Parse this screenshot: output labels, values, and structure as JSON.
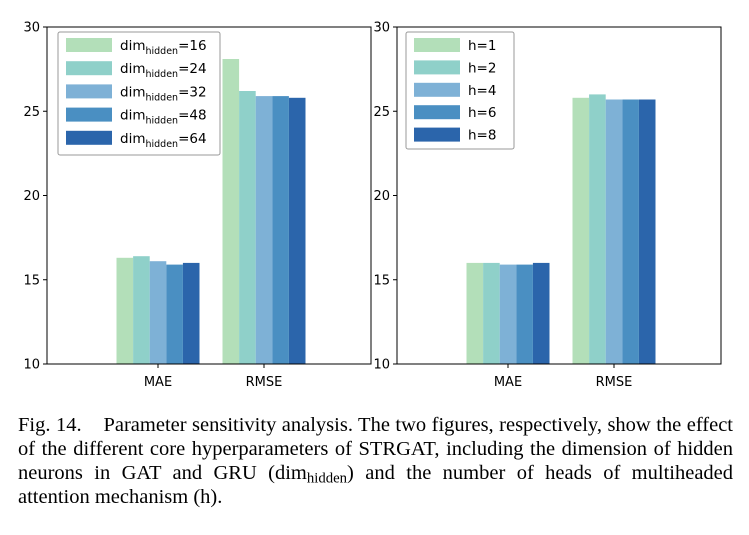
{
  "chart_data": [
    {
      "type": "bar",
      "categories": [
        "MAE",
        "RMSE"
      ],
      "ylim": [
        10,
        30
      ],
      "yticks": [
        10,
        15,
        20,
        25,
        30
      ],
      "legend_position": "top-left",
      "series": [
        {
          "label_main": "dim",
          "label_sub": "hidden",
          "label_suffix": "=16",
          "color": "#b3dfb9",
          "values": [
            16.3,
            28.1
          ]
        },
        {
          "label_main": "dim",
          "label_sub": "hidden",
          "label_suffix": "=24",
          "color": "#8fd0c9",
          "values": [
            16.4,
            26.2
          ]
        },
        {
          "label_main": "dim",
          "label_sub": "hidden",
          "label_suffix": "=32",
          "color": "#7eb1d6",
          "values": [
            16.1,
            25.9
          ]
        },
        {
          "label_main": "dim",
          "label_sub": "hidden",
          "label_suffix": "=48",
          "color": "#4a8fc2",
          "values": [
            15.9,
            25.9
          ]
        },
        {
          "label_main": "dim",
          "label_sub": "hidden",
          "label_suffix": "=64",
          "color": "#2b65ab",
          "values": [
            16.0,
            25.8
          ]
        }
      ]
    },
    {
      "type": "bar",
      "categories": [
        "MAE",
        "RMSE"
      ],
      "ylim": [
        10,
        30
      ],
      "yticks": [
        10,
        15,
        20,
        25,
        30
      ],
      "legend_position": "top-left",
      "series": [
        {
          "label_main": "h=1",
          "label_sub": "",
          "label_suffix": "",
          "color": "#b3dfb9",
          "values": [
            16.0,
            25.8
          ]
        },
        {
          "label_main": "h=2",
          "label_sub": "",
          "label_suffix": "",
          "color": "#8fd0c9",
          "values": [
            16.0,
            26.0
          ]
        },
        {
          "label_main": "h=4",
          "label_sub": "",
          "label_suffix": "",
          "color": "#7eb1d6",
          "values": [
            15.9,
            25.7
          ]
        },
        {
          "label_main": "h=6",
          "label_sub": "",
          "label_suffix": "",
          "color": "#4a8fc2",
          "values": [
            15.9,
            25.7
          ]
        },
        {
          "label_main": "h=8",
          "label_sub": "",
          "label_suffix": "",
          "color": "#2b65ab",
          "values": [
            16.0,
            25.7
          ]
        }
      ]
    }
  ],
  "caption": {
    "label": "Fig. 14.",
    "text_1": "Parameter sensitivity analysis. The two figures, respectively, show the effect of the different core hyperparameters of STRGAT, including the dimension of hidden neurons in GAT and GRU (dim",
    "text_sub": "hidden",
    "text_2": ") and the number of heads of multiheaded attention mechanism (h)."
  }
}
